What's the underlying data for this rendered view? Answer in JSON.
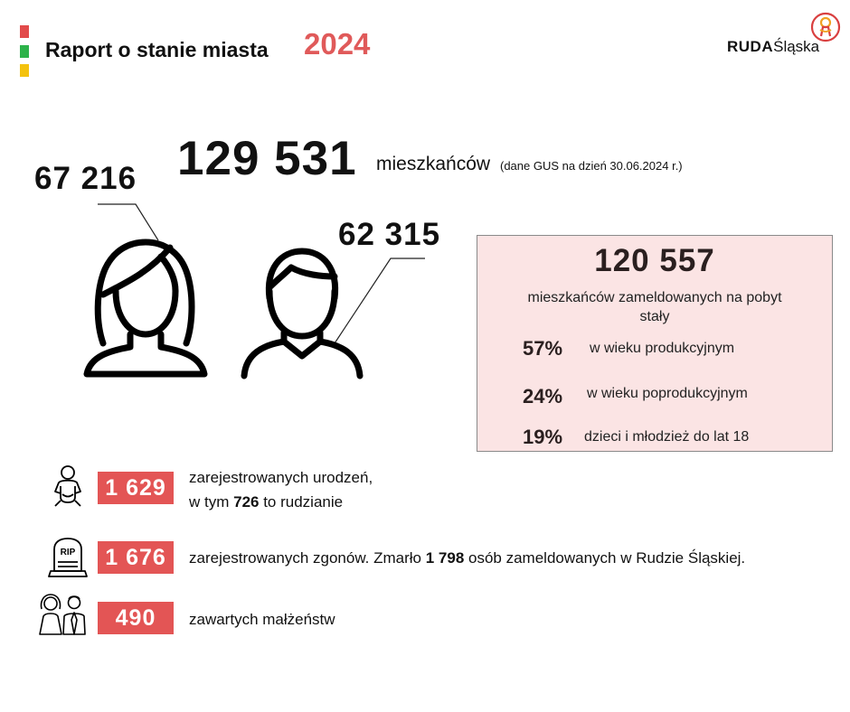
{
  "header": {
    "title": "Raport o stanie miasta",
    "year": "2024",
    "logo_bold": "RUDA",
    "logo_rest": "Śląska",
    "colors": {
      "red": "#e24b4b",
      "green": "#2db34a",
      "yellow": "#f4c20d",
      "accent": "#e05a5a"
    }
  },
  "population": {
    "total": "129 531",
    "total_label": "mieszkańców",
    "source_note": "(dane GUS  na dzień 30.06.2024 r.)",
    "women": "67 216",
    "men": "62 315",
    "women_icon": "woman-icon",
    "men_icon": "man-icon"
  },
  "registered": {
    "number": "120 557",
    "label": "mieszkańców zameldowanych na pobyt stały",
    "breakdown": [
      {
        "pct": "57%",
        "label": "w wieku produkcyjnym"
      },
      {
        "pct": "24%",
        "label": "w wieku poprodukcyjnym"
      },
      {
        "pct": "19%",
        "label": "dzieci i młodzież do lat 18"
      }
    ]
  },
  "stats": {
    "births": {
      "icon": "baby-icon",
      "value": "1 629",
      "line1": "zarejestrowanych urodzeń,",
      "line2_pre": "w tym ",
      "line2_bold": "726",
      "line2_post": " to rudzianie"
    },
    "deaths": {
      "icon": "grave-icon",
      "value": "1 676",
      "text_pre": "zarejestrowanych zgonów. Zmarło ",
      "text_bold": "1 798",
      "text_post": " osób zameldowanych w Rudzie Śląskiej.",
      "grave_text": "RIP"
    },
    "marriages": {
      "icon": "couple-icon",
      "value": "490",
      "text": "zawartych małżeństw"
    }
  }
}
